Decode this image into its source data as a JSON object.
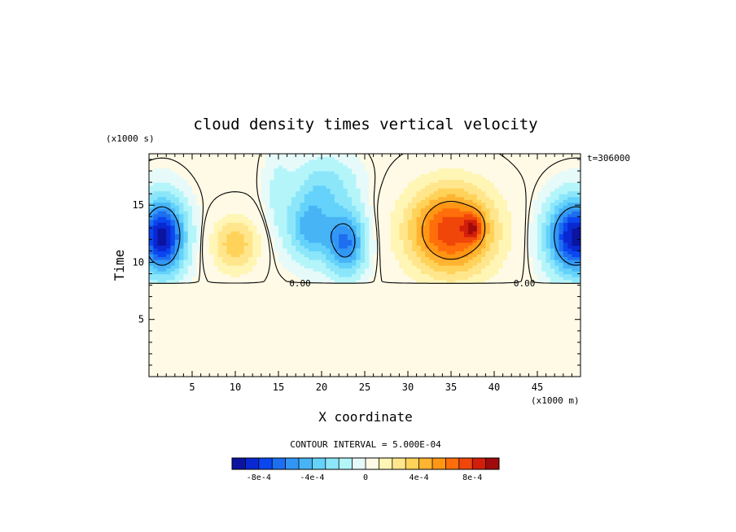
{
  "chart_data": {
    "type": "heatmap",
    "title": "cloud density times vertical velocity",
    "time_label": "t=306000",
    "xlabel": "X coordinate",
    "ylabel": "Time",
    "x_unit": "(x1000 m)",
    "y_unit": "(x1000 s)",
    "xlim": [
      0,
      50
    ],
    "ylim": [
      0,
      19.5
    ],
    "x_ticks": [
      5,
      10,
      15,
      20,
      25,
      30,
      35,
      40,
      45
    ],
    "y_ticks": [
      5,
      10,
      15
    ],
    "contour_interval_text": "CONTOUR INTERVAL = 5.000E-04",
    "zero_contour_labels": [
      "0.00",
      "0.00"
    ],
    "zero_label_positions": [
      [
        17.5,
        8.2
      ],
      [
        43.5,
        8.2
      ]
    ],
    "colorbar": {
      "levels": [
        -0.001,
        -0.0009,
        -0.0008,
        -0.0007,
        -0.0006,
        -0.0005,
        -0.0004,
        -0.0003,
        -0.0002,
        -0.0001,
        0,
        0.0001,
        0.0002,
        0.0003,
        0.0004,
        0.0005,
        0.0006,
        0.0007,
        0.0008,
        0.0009,
        0.001
      ],
      "colors": [
        "#0a14a0",
        "#0a28d2",
        "#0a46f0",
        "#1e6ef0",
        "#3296f5",
        "#46b4f5",
        "#64d2fa",
        "#8ce6fa",
        "#b4f5fa",
        "#e6fafa",
        "#fffae6",
        "#fff5b4",
        "#ffe68c",
        "#ffd25a",
        "#ffb432",
        "#ff9614",
        "#ff6e0a",
        "#f0460a",
        "#d21e0a",
        "#a00a0a"
      ],
      "tick_labels": [
        "-8e-4",
        "-4e-4",
        "0",
        "4e-4",
        "8e-4"
      ],
      "tick_values": [
        -0.0008,
        -0.0004,
        0,
        0.0004,
        0.0008
      ]
    },
    "field_base": 0,
    "cloud_base": 8.3,
    "blobs": [
      {
        "x": 1.5,
        "y": 12.3,
        "sx": 2.6,
        "sy": 3.2,
        "amp": -0.00095
      },
      {
        "x": 49.5,
        "y": 12.3,
        "sx": 3.2,
        "sy": 3.2,
        "amp": -0.00095
      },
      {
        "x": 10.0,
        "y": 11.6,
        "sx": 2.6,
        "sy": 2.4,
        "amp": 0.00038
      },
      {
        "x": 18.6,
        "y": 13.0,
        "sx": 2.4,
        "sy": 2.8,
        "amp": -0.00045
      },
      {
        "x": 22.8,
        "y": 11.8,
        "sx": 2.3,
        "sy": 2.8,
        "amp": -0.00062
      },
      {
        "x": 20.5,
        "y": 16.8,
        "sx": 3.5,
        "sy": 2.5,
        "amp": -0.00025
      },
      {
        "x": 35.0,
        "y": 12.8,
        "sx": 5.0,
        "sy": 3.8,
        "amp": 0.00078
      },
      {
        "x": 37.6,
        "y": 13.1,
        "sx": 1.1,
        "sy": 1.2,
        "amp": 0.00035
      },
      {
        "x": 15.0,
        "y": 16.0,
        "sx": 1.6,
        "sy": 4.0,
        "amp": -0.00012
      }
    ]
  }
}
